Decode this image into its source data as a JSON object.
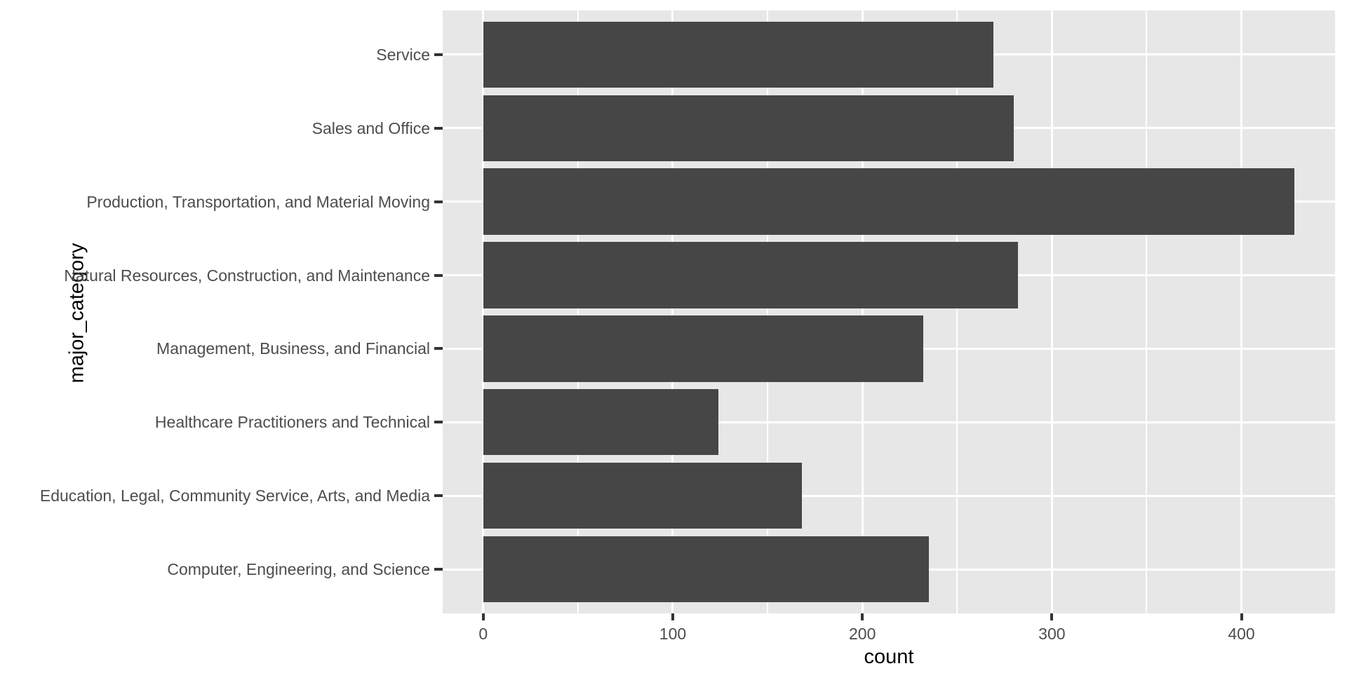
{
  "chart_data": {
    "type": "bar",
    "orientation": "horizontal",
    "title": "",
    "xlabel": "count",
    "ylabel": "major_category",
    "categories": [
      "Service",
      "Sales and Office",
      "Production, Transportation, and Material Moving",
      "Natural Resources, Construction, and Maintenance",
      "Management, Business, and Financial",
      "Healthcare Practitioners and Technical",
      "Education, Legal, Community Service, Arts, and Media",
      "Computer, Engineering, and Science"
    ],
    "values": [
      269,
      280,
      428,
      282,
      232,
      124,
      168,
      235
    ],
    "x_ticks": [
      0,
      100,
      200,
      300,
      400
    ],
    "x_minor_gridlines": [
      50,
      150,
      250,
      350,
      450
    ],
    "xlim": [
      -21.4,
      449.4
    ],
    "grid": true,
    "legend": false,
    "colors": {
      "bar": "#464646",
      "panel_background": "#E7E7E7",
      "gridline": "#FFFFFF",
      "tick_label": "#4D4D4D",
      "axis_title": "#000000",
      "tick_mark": "#333333",
      "page_background": "#FFFFFF"
    }
  }
}
